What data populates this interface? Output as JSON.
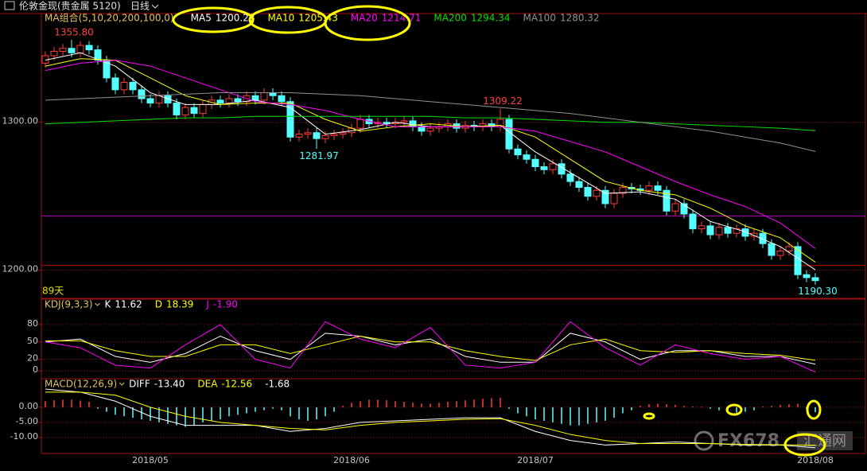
{
  "header": {
    "instrument": "伦敦金现(贵金属 5120)",
    "period": "日线"
  },
  "watermark": {
    "brand": "FX678",
    "name": "汇通网"
  },
  "chart_data": [
    {
      "type": "candlestick",
      "legend_title": "MA组合(5,10,20,200,100,0)",
      "legend_color": "#e0c060",
      "legend_menu": false,
      "grid": true,
      "grid_color": "#8a1010",
      "up_color": "#ff3c3c",
      "down_color": "#54ffff",
      "high_label_color": "#ff4040",
      "low_label_color": "#54ffff",
      "period_label": "89天",
      "period_label_color": "#e0e000",
      "ylim": [
        1181,
        1373
      ],
      "yticks": [
        {
          "value": 1300,
          "label": "1300.00"
        },
        {
          "value": 1200,
          "label": "1200.00"
        }
      ],
      "categories": [
        null,
        null,
        null,
        null,
        null,
        null,
        null,
        null,
        null,
        null,
        null,
        null,
        "2018/05",
        null,
        null,
        null,
        null,
        null,
        null,
        null,
        null,
        null,
        null,
        null,
        null,
        null,
        null,
        null,
        null,
        null,
        null,
        null,
        null,
        null,
        null,
        "2018/06",
        null,
        null,
        null,
        null,
        null,
        null,
        null,
        null,
        null,
        null,
        null,
        null,
        null,
        null,
        null,
        null,
        null,
        null,
        null,
        null,
        "2018/07",
        null,
        null,
        null,
        null,
        null,
        null,
        null,
        null,
        null,
        null,
        null,
        null,
        null,
        null,
        null,
        null,
        null,
        null,
        null,
        null,
        null,
        null,
        null,
        null,
        null,
        null,
        null,
        null,
        null,
        null,
        null,
        "2018/08"
      ],
      "open": [
        1340,
        1345,
        1348,
        1350,
        1347,
        1352,
        1349,
        1342,
        1330,
        1322,
        1327,
        1322,
        1316,
        1313,
        1318,
        1313,
        1305,
        1310,
        1306,
        1312,
        1315,
        1313,
        1316,
        1314,
        1318,
        1315,
        1320,
        1318,
        1314,
        1290,
        1292,
        1293,
        1289,
        1291,
        1292,
        1293,
        1296,
        1302,
        1299,
        1300,
        1299,
        1300,
        1301,
        1297,
        1294,
        1296,
        1297,
        1299,
        1296,
        1298,
        1297,
        1299,
        1297,
        1302,
        1282,
        1278,
        1275,
        1270,
        1268,
        1272,
        1265,
        1260,
        1256,
        1250,
        1254,
        1245,
        1252,
        1256,
        1255,
        1254,
        1257,
        1254,
        1240,
        1245,
        1238,
        1228,
        1230,
        1224,
        1229,
        1225,
        1228,
        1223,
        1225,
        1218,
        1210,
        1213,
        1216,
        1197,
        1195
      ],
      "high": [
        1348,
        1351,
        1353,
        1355.8,
        1355,
        1355,
        1352,
        1345,
        1333,
        1330,
        1330,
        1325,
        1319,
        1321,
        1321,
        1316,
        1313,
        1313,
        1315,
        1318,
        1318,
        1319,
        1319,
        1321,
        1321,
        1323,
        1323,
        1321,
        1317,
        1295,
        1296,
        1296,
        1294,
        1295,
        1296,
        1299,
        1305,
        1305,
        1303,
        1303,
        1303,
        1304,
        1304,
        1300,
        1299,
        1300,
        1302,
        1302,
        1301,
        1301,
        1302,
        1302,
        1309.22,
        1305,
        1285,
        1281,
        1278,
        1273,
        1275,
        1275,
        1268,
        1263,
        1259,
        1257,
        1257,
        1255,
        1259,
        1259,
        1258,
        1260,
        1260,
        1257,
        1248,
        1248,
        1241,
        1233,
        1233,
        1232,
        1232,
        1231,
        1231,
        1228,
        1228,
        1221,
        1216,
        1219,
        1219,
        1200,
        1198
      ],
      "low": [
        1337,
        1342,
        1345,
        1344,
        1344,
        1346,
        1339,
        1327,
        1319,
        1319,
        1319,
        1313,
        1310,
        1310,
        1310,
        1302,
        1302,
        1303,
        1303,
        1309,
        1310,
        1310,
        1311,
        1311,
        1312,
        1312,
        1315,
        1311,
        1287,
        1287,
        1289,
        1281.97,
        1286,
        1288,
        1289,
        1290,
        1293,
        1296,
        1296,
        1296,
        1296,
        1297,
        1294,
        1291,
        1291,
        1293,
        1294,
        1293,
        1293,
        1294,
        1294,
        1294,
        1294,
        1279,
        1275,
        1272,
        1267,
        1265,
        1265,
        1262,
        1257,
        1253,
        1247,
        1247,
        1242,
        1242,
        1249,
        1252,
        1251,
        1251,
        1251,
        1237,
        1237,
        1235,
        1225,
        1225,
        1221,
        1221,
        1222,
        1222,
        1220,
        1220,
        1215,
        1207,
        1207,
        1210,
        1194,
        1192,
        1190.3
      ],
      "close": [
        1345,
        1348,
        1350,
        1347,
        1352,
        1349,
        1342,
        1330,
        1322,
        1327,
        1322,
        1316,
        1313,
        1318,
        1313,
        1305,
        1310,
        1306,
        1312,
        1315,
        1313,
        1316,
        1314,
        1318,
        1315,
        1320,
        1318,
        1314,
        1290,
        1292,
        1293,
        1289,
        1291,
        1292,
        1293,
        1296,
        1302,
        1299,
        1300,
        1299,
        1300,
        1301,
        1297,
        1294,
        1296,
        1297,
        1299,
        1296,
        1298,
        1297,
        1299,
        1297,
        1302,
        1282,
        1278,
        1275,
        1270,
        1268,
        1272,
        1265,
        1260,
        1256,
        1250,
        1254,
        1245,
        1252,
        1256,
        1255,
        1254,
        1257,
        1254,
        1240,
        1245,
        1238,
        1228,
        1230,
        1224,
        1229,
        1225,
        1228,
        1223,
        1225,
        1218,
        1210,
        1213,
        1216,
        1197,
        1195,
        1193
      ],
      "annotations": [
        {
          "text": "1355.80",
          "candle": 3,
          "at": "high"
        },
        {
          "text": "1281.97",
          "candle": 31,
          "at": "low"
        },
        {
          "text": "1309.22",
          "candle": 52,
          "at": "high"
        },
        {
          "text": "1190.30",
          "candle": 88,
          "at": "low"
        }
      ],
      "reference_lines": [
        {
          "value": 1236.6,
          "color": "#c000c0"
        },
        {
          "value": 1203.2,
          "color": "#c00000"
        }
      ],
      "x": [
        0,
        4,
        8,
        12,
        16,
        20,
        24,
        28,
        32,
        36,
        40,
        44,
        48,
        52,
        56,
        60,
        64,
        68,
        72,
        76,
        80,
        84,
        88
      ],
      "series": [
        {
          "name": "MA5",
          "color": "#ffffff",
          "legend_value": "1200.28",
          "values": [
            1342,
            1347,
            1338,
            1320,
            1312,
            1312,
            1315,
            1310,
            1292,
            1295,
            1300,
            1297,
            1297,
            1298,
            1280,
            1266,
            1252,
            1253,
            1248,
            1233,
            1226,
            1216,
            1200.28
          ]
        },
        {
          "name": "MA10",
          "color": "#ffff00",
          "legend_value": "1205.43",
          "values": [
            1338,
            1343,
            1342,
            1330,
            1318,
            1312,
            1313,
            1313,
            1302,
            1294,
            1297,
            1299,
            1297,
            1298,
            1290,
            1275,
            1260,
            1254,
            1251,
            1242,
            1230,
            1222,
            1205.43
          ]
        },
        {
          "name": "MA20",
          "color": "#ff00ff",
          "legend_value": "1214.71",
          "values": [
            1335,
            1340,
            1342,
            1338,
            1330,
            1322,
            1314,
            1312,
            1308,
            1302,
            1297,
            1297,
            1297,
            1297,
            1294,
            1287,
            1280,
            1270,
            1260,
            1251,
            1243,
            1232,
            1214.71
          ]
        },
        {
          "name": "MA200",
          "color": "#00e000",
          "legend_value": "1294.34",
          "values": [
            1299,
            1300,
            1301,
            1302,
            1303,
            1303,
            1304,
            1304,
            1304,
            1304,
            1304,
            1304,
            1303,
            1303,
            1302,
            1301,
            1300,
            1300,
            1299,
            1298,
            1297,
            1296,
            1294.34
          ]
        },
        {
          "name": "MA100",
          "color": "#909090",
          "legend_value": "1280.32",
          "values": [
            1315,
            1316,
            1317,
            1318,
            1319,
            1320,
            1320,
            1320,
            1319,
            1318,
            1316,
            1314,
            1312,
            1310,
            1308,
            1306,
            1303,
            1300,
            1297,
            1294,
            1290,
            1286,
            1280.32
          ]
        }
      ]
    },
    {
      "type": "line",
      "legend_title": "KDJ(9,3,3)",
      "legend_color": "#e0c060",
      "legend_menu": true,
      "grid": true,
      "grid_color": "#8a1010",
      "ylim": [
        -12,
        121
      ],
      "yticks": [
        80,
        50,
        20,
        0
      ],
      "x": [
        0,
        4,
        8,
        12,
        16,
        20,
        24,
        28,
        32,
        36,
        40,
        44,
        48,
        52,
        56,
        60,
        64,
        68,
        72,
        76,
        80,
        84,
        88
      ],
      "series": [
        {
          "name": "K",
          "color": "#ffffff",
          "legend_value": "11.62",
          "values": [
            50,
            55,
            25,
            15,
            30,
            60,
            35,
            20,
            65,
            60,
            45,
            55,
            25,
            15,
            15,
            65,
            50,
            20,
            35,
            35,
            25,
            25,
            11.62
          ]
        },
        {
          "name": "D",
          "color": "#ffff00",
          "legend_value": "18.39",
          "values": [
            52,
            52,
            35,
            25,
            25,
            45,
            45,
            30,
            45,
            60,
            50,
            50,
            35,
            25,
            18,
            45,
            55,
            35,
            32,
            35,
            30,
            27,
            18.39
          ]
        },
        {
          "name": "J",
          "color": "#ff00ff",
          "legend_value": "-1.90",
          "values": [
            50,
            40,
            10,
            5,
            45,
            80,
            20,
            5,
            85,
            55,
            40,
            75,
            10,
            5,
            15,
            85,
            40,
            10,
            45,
            30,
            20,
            25,
            -1.9
          ]
        }
      ]
    },
    {
      "type": "bar",
      "legend_title": "MACD(12,26,9)",
      "legend_color": "#e0c060",
      "legend_menu": true,
      "grid": true,
      "grid_color": "#8a1010",
      "ylim": [
        -15.3,
        8.9
      ],
      "yticks": [
        {
          "value": 0,
          "label": "0.00"
        },
        {
          "value": -5,
          "label": "-5.00"
        },
        {
          "value": -10,
          "label": "-10.00"
        }
      ],
      "x": [
        0,
        4,
        8,
        12,
        16,
        20,
        24,
        28,
        32,
        36,
        40,
        44,
        48,
        52,
        56,
        60,
        64,
        68,
        72,
        76,
        80,
        84,
        88
      ],
      "series": [
        {
          "name": "DIFF",
          "color": "#ffffff",
          "legend_value": "-13.40",
          "values": [
            6,
            5,
            2,
            -3,
            -6,
            -6,
            -6,
            -8,
            -7,
            -5,
            -4.5,
            -4,
            -3.5,
            -3.5,
            -8,
            -11,
            -12.5,
            -12,
            -11.5,
            -12,
            -12.5,
            -12.5,
            -13.4
          ]
        },
        {
          "name": "DEA",
          "color": "#ffff00",
          "legend_value": "-12.56",
          "values": [
            5,
            5,
            4,
            0,
            -3,
            -5,
            -6,
            -7,
            -7.5,
            -6,
            -5,
            -4.5,
            -4,
            -3.8,
            -6,
            -9,
            -11,
            -12,
            -12,
            -12,
            -12.3,
            -12.4,
            -12.56
          ]
        }
      ],
      "histogram": {
        "legend_value": "-1.68",
        "legend_color": "#ffffff",
        "up_color": "#ff3c3c",
        "down_color": "#54ffff",
        "values": [
          2.0,
          2.3,
          2.5,
          2.5,
          2.2,
          1.8,
          -0.5,
          -1.5,
          -2.5,
          -3,
          -3.5,
          -4,
          -4.5,
          -5,
          -5.5,
          -6,
          -6.5,
          -6,
          -5,
          -4.5,
          -4,
          -3,
          -2.5,
          -2,
          -1.5,
          -1,
          -0.5,
          -1,
          -3,
          -4,
          -4.5,
          -4,
          -3,
          -1.5,
          0.5,
          1.5,
          2.0,
          2.5,
          2.5,
          2.3,
          2,
          1.8,
          1.5,
          1.2,
          1.2,
          1.5,
          1.8,
          2.0,
          2.3,
          2.5,
          2.8,
          3.0,
          3.2,
          -0.5,
          -2,
          -3,
          -4,
          -4.5,
          -5,
          -5.5,
          -6,
          -6,
          -5.5,
          -5,
          -4.5,
          -3.5,
          -2,
          -1,
          0.5,
          1,
          1.2,
          1.0,
          0.8,
          0.5,
          0.3,
          0.2,
          -0.5,
          -1,
          -1.5,
          -1.8,
          -1.5,
          -1,
          0.3,
          0.5,
          0.8,
          1.0,
          1.2,
          -0.5,
          -1.68
        ]
      }
    }
  ]
}
